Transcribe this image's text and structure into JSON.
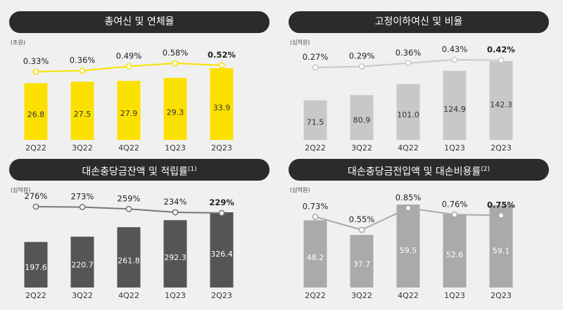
{
  "chart_data": [
    {
      "type": "bar",
      "title": "총여신 및 연체율",
      "unit": "(조원)",
      "categories": [
        "2Q22",
        "3Q22",
        "4Q22",
        "1Q23",
        "2Q23"
      ],
      "series": [
        {
          "values": [
            26.8,
            27.5,
            27.9,
            29.3,
            33.9
          ]
        },
        {
          "values": [
            0.33,
            0.36,
            0.49,
            0.58,
            0.52
          ]
        }
      ],
      "bar_labels": [
        "26.8",
        "27.5",
        "27.9",
        "29.3",
        "33.9"
      ],
      "line_labels": [
        "0.33%",
        "0.36%",
        "0.49%",
        "0.58%",
        "0.52%"
      ],
      "colors": {
        "bar": "#fbe000",
        "bar_last": "#fbe000",
        "line": "#f7e200",
        "bar_text": "#333333"
      }
    },
    {
      "type": "bar",
      "title": "고정이하여신 및 비율",
      "unit": "(십억원)",
      "categories": [
        "2Q22",
        "3Q22",
        "4Q22",
        "1Q23",
        "2Q23"
      ],
      "series": [
        {
          "values": [
            71.5,
            80.9,
            101.0,
            124.9,
            142.3
          ]
        },
        {
          "values": [
            0.27,
            0.29,
            0.36,
            0.43,
            0.42
          ]
        }
      ],
      "bar_labels": [
        "71.5",
        "80.9",
        "101.0",
        "124.9",
        "142.3"
      ],
      "line_labels": [
        "0.27%",
        "0.29%",
        "0.36%",
        "0.43%",
        "0.42%"
      ],
      "colors": {
        "bar": "#c8c8c8",
        "bar_last": "#c8c8c8",
        "line": "#c8c8c8",
        "bar_text": "#333333"
      }
    },
    {
      "type": "bar",
      "title": "대손충당금잔액 및 적립률",
      "title_sup": "(1)",
      "unit": "(십억원)",
      "categories": [
        "2Q22",
        "3Q22",
        "4Q22",
        "1Q23",
        "2Q23"
      ],
      "series": [
        {
          "values": [
            197.6,
            220.7,
            261.8,
            292.3,
            326.4
          ]
        },
        {
          "values": [
            276,
            273,
            259,
            234,
            229
          ]
        }
      ],
      "bar_labels": [
        "197.6",
        "220.7",
        "261.8",
        "292.3",
        "326.4"
      ],
      "line_labels": [
        "276%",
        "273%",
        "259%",
        "234%",
        "229%"
      ],
      "colors": {
        "bar": "#555555",
        "bar_last": "#555555",
        "line": "#777777",
        "bar_text": "#ffffff"
      }
    },
    {
      "type": "bar",
      "title": "대손충당금전입액 및 대손비용률",
      "title_sup": "(2)",
      "unit": "(십억원)",
      "categories": [
        "2Q22",
        "3Q22",
        "4Q22",
        "1Q23",
        "2Q23"
      ],
      "series": [
        {
          "values": [
            48.2,
            37.7,
            59.5,
            52.6,
            59.1
          ]
        },
        {
          "values": [
            0.73,
            0.55,
            0.85,
            0.76,
            0.75
          ]
        }
      ],
      "bar_labels": [
        "48.2",
        "37.7",
        "59.5",
        "52.6",
        "59.1"
      ],
      "line_labels": [
        "0.73%",
        "0.55%",
        "0.85%",
        "0.76%",
        "0.75%"
      ],
      "colors": {
        "bar": "#aaaaaa",
        "bar_last": "#aaaaaa",
        "line": "#aaaaaa",
        "bar_text": "#ffffff"
      }
    }
  ]
}
